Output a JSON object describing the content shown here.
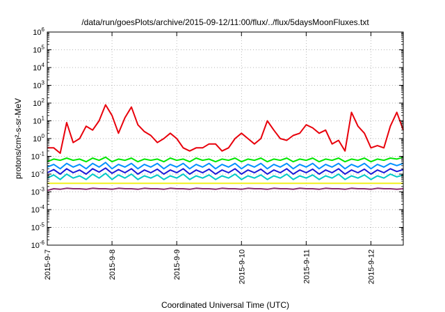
{
  "chart_data": {
    "type": "line",
    "title": "/data/run/goesPlots/archive/2015-09-12/11:00/flux/../flux/5daysMoonFluxes.txt",
    "xlabel": "Coordinated Universal Time (UTC)",
    "ylabel": "protons/cm²-s-sr-MeV",
    "y_scale": "log",
    "ylim": [
      1e-06,
      1000000.0
    ],
    "xlim": [
      "2015-09-07",
      "2015-09-12 12:00"
    ],
    "x_tick_labels": [
      "2015-9-7",
      "2015-9-8",
      "2015-9-9",
      "2015-9-10",
      "2015-9-11",
      "2015-9-12"
    ],
    "y_tick_labels": [
      {
        "base": "10",
        "exp": "-6"
      },
      {
        "base": "10",
        "exp": "-5"
      },
      {
        "base": "10",
        "exp": "-4"
      },
      {
        "base": "10",
        "exp": "-3"
      },
      {
        "base": "10",
        "exp": "-2"
      },
      {
        "base": "10",
        "exp": "-1"
      },
      {
        "base": "10",
        "exp": "0"
      },
      {
        "base": "10",
        "exp": "1"
      },
      {
        "base": "10",
        "exp": "2"
      },
      {
        "base": "10",
        "exp": "3"
      },
      {
        "base": "10",
        "exp": "4"
      },
      {
        "base": "10",
        "exp": "5"
      },
      {
        "base": "10",
        "exp": "6"
      }
    ],
    "grid": true,
    "legend": "none",
    "x_days": [
      0,
      0.1,
      0.2,
      0.3,
      0.4,
      0.5,
      0.6,
      0.7,
      0.8,
      0.9,
      1.0,
      1.1,
      1.2,
      1.3,
      1.4,
      1.5,
      1.6,
      1.7,
      1.8,
      1.9,
      2.0,
      2.1,
      2.2,
      2.3,
      2.4,
      2.5,
      2.6,
      2.7,
      2.8,
      2.9,
      3.0,
      3.1,
      3.2,
      3.3,
      3.4,
      3.5,
      3.6,
      3.7,
      3.8,
      3.9,
      4.0,
      4.1,
      4.2,
      4.3,
      4.4,
      4.5,
      4.6,
      4.7,
      4.8,
      4.9,
      5.0,
      5.1,
      5.2,
      5.3,
      5.4,
      5.5
    ],
    "series": [
      {
        "color": "#e8000b",
        "values": [
          0.3,
          0.3,
          0.15,
          8,
          0.6,
          1.0,
          5,
          3,
          10,
          80,
          20,
          2,
          15,
          60,
          6,
          2.5,
          1.5,
          0.6,
          1.0,
          2,
          1.0,
          0.3,
          0.2,
          0.3,
          0.3,
          0.5,
          0.5,
          0.2,
          0.3,
          1.0,
          2,
          1.0,
          0.5,
          1.0,
          10,
          3,
          1.0,
          0.8,
          1.5,
          2,
          6,
          4,
          2,
          3,
          0.5,
          0.8,
          0.2,
          30,
          5,
          2,
          0.3,
          0.4,
          0.3,
          5,
          30,
          3
        ]
      },
      {
        "color": "#00e600",
        "values": [
          0.05,
          0.07,
          0.06,
          0.08,
          0.06,
          0.07,
          0.05,
          0.08,
          0.06,
          0.09,
          0.05,
          0.07,
          0.06,
          0.08,
          0.05,
          0.07,
          0.06,
          0.07,
          0.05,
          0.08,
          0.06,
          0.07,
          0.05,
          0.08,
          0.06,
          0.07,
          0.05,
          0.07,
          0.06,
          0.08,
          0.05,
          0.07,
          0.06,
          0.08,
          0.05,
          0.07,
          0.06,
          0.08,
          0.05,
          0.07,
          0.06,
          0.08,
          0.05,
          0.07,
          0.06,
          0.08,
          0.05,
          0.07,
          0.06,
          0.08,
          0.05,
          0.07,
          0.06,
          0.08,
          0.07,
          0.09
        ]
      },
      {
        "color": "#0090ff",
        "values": [
          0.025,
          0.035,
          0.02,
          0.04,
          0.025,
          0.035,
          0.02,
          0.04,
          0.025,
          0.045,
          0.02,
          0.035,
          0.025,
          0.04,
          0.02,
          0.035,
          0.025,
          0.04,
          0.02,
          0.035,
          0.025,
          0.04,
          0.02,
          0.035,
          0.025,
          0.04,
          0.02,
          0.035,
          0.025,
          0.04,
          0.02,
          0.035,
          0.025,
          0.04,
          0.02,
          0.035,
          0.025,
          0.04,
          0.02,
          0.035,
          0.025,
          0.04,
          0.02,
          0.035,
          0.025,
          0.04,
          0.02,
          0.035,
          0.025,
          0.04,
          0.02,
          0.035,
          0.025,
          0.04,
          0.03,
          0.04
        ]
      },
      {
        "color": "#1a1ad8",
        "values": [
          0.012,
          0.018,
          0.01,
          0.02,
          0.012,
          0.017,
          0.01,
          0.02,
          0.013,
          0.022,
          0.011,
          0.018,
          0.012,
          0.02,
          0.01,
          0.017,
          0.012,
          0.019,
          0.01,
          0.017,
          0.012,
          0.02,
          0.01,
          0.017,
          0.012,
          0.019,
          0.01,
          0.017,
          0.012,
          0.02,
          0.01,
          0.017,
          0.012,
          0.019,
          0.01,
          0.017,
          0.012,
          0.02,
          0.01,
          0.017,
          0.012,
          0.019,
          0.01,
          0.017,
          0.012,
          0.02,
          0.01,
          0.017,
          0.012,
          0.019,
          0.01,
          0.017,
          0.012,
          0.02,
          0.014,
          0.018
        ]
      },
      {
        "color": "#00c8c8",
        "values": [
          0.006,
          0.009,
          0.005,
          0.01,
          0.006,
          0.008,
          0.005,
          0.01,
          0.006,
          0.011,
          0.005,
          0.009,
          0.006,
          0.01,
          0.005,
          0.008,
          0.006,
          0.009,
          0.005,
          0.008,
          0.006,
          0.01,
          0.005,
          0.008,
          0.006,
          0.009,
          0.005,
          0.008,
          0.006,
          0.01,
          0.005,
          0.008,
          0.006,
          0.009,
          0.005,
          0.008,
          0.006,
          0.01,
          0.005,
          0.008,
          0.006,
          0.009,
          0.005,
          0.008,
          0.006,
          0.01,
          0.005,
          0.008,
          0.006,
          0.009,
          0.005,
          0.008,
          0.006,
          0.01,
          0.007,
          0.009
        ]
      },
      {
        "color": "#f2f21a",
        "values": [
          0.003,
          0.003,
          0.003,
          0.003,
          0.003,
          0.003,
          0.003,
          0.003,
          0.003,
          0.003,
          0.003,
          0.003,
          0.003,
          0.003,
          0.003,
          0.003,
          0.003,
          0.003,
          0.003,
          0.003,
          0.003,
          0.003,
          0.003,
          0.003,
          0.003,
          0.003,
          0.003,
          0.003,
          0.003,
          0.003,
          0.003,
          0.003,
          0.003,
          0.003,
          0.003,
          0.003,
          0.003,
          0.003,
          0.003,
          0.003,
          0.003,
          0.003,
          0.003,
          0.003,
          0.003,
          0.003,
          0.003,
          0.003,
          0.003,
          0.003,
          0.003,
          0.003,
          0.003,
          0.003,
          0.003,
          0.003
        ]
      },
      {
        "color": "#8b2a6e",
        "values": [
          0.0012,
          0.0015,
          0.0014,
          0.0016,
          0.0015,
          0.0015,
          0.0014,
          0.0016,
          0.0015,
          0.0015,
          0.0014,
          0.0016,
          0.0015,
          0.0015,
          0.0014,
          0.0016,
          0.0015,
          0.0015,
          0.0014,
          0.0016,
          0.0015,
          0.0015,
          0.0014,
          0.0016,
          0.0015,
          0.0015,
          0.0014,
          0.0016,
          0.0015,
          0.0015,
          0.0014,
          0.0016,
          0.0015,
          0.0015,
          0.0014,
          0.0016,
          0.0015,
          0.0015,
          0.0014,
          0.0016,
          0.0015,
          0.0015,
          0.0014,
          0.0016,
          0.0015,
          0.0015,
          0.0014,
          0.0016,
          0.0015,
          0.0015,
          0.0014,
          0.0016,
          0.0015,
          0.0015,
          0.0014,
          0.0015
        ]
      }
    ]
  }
}
